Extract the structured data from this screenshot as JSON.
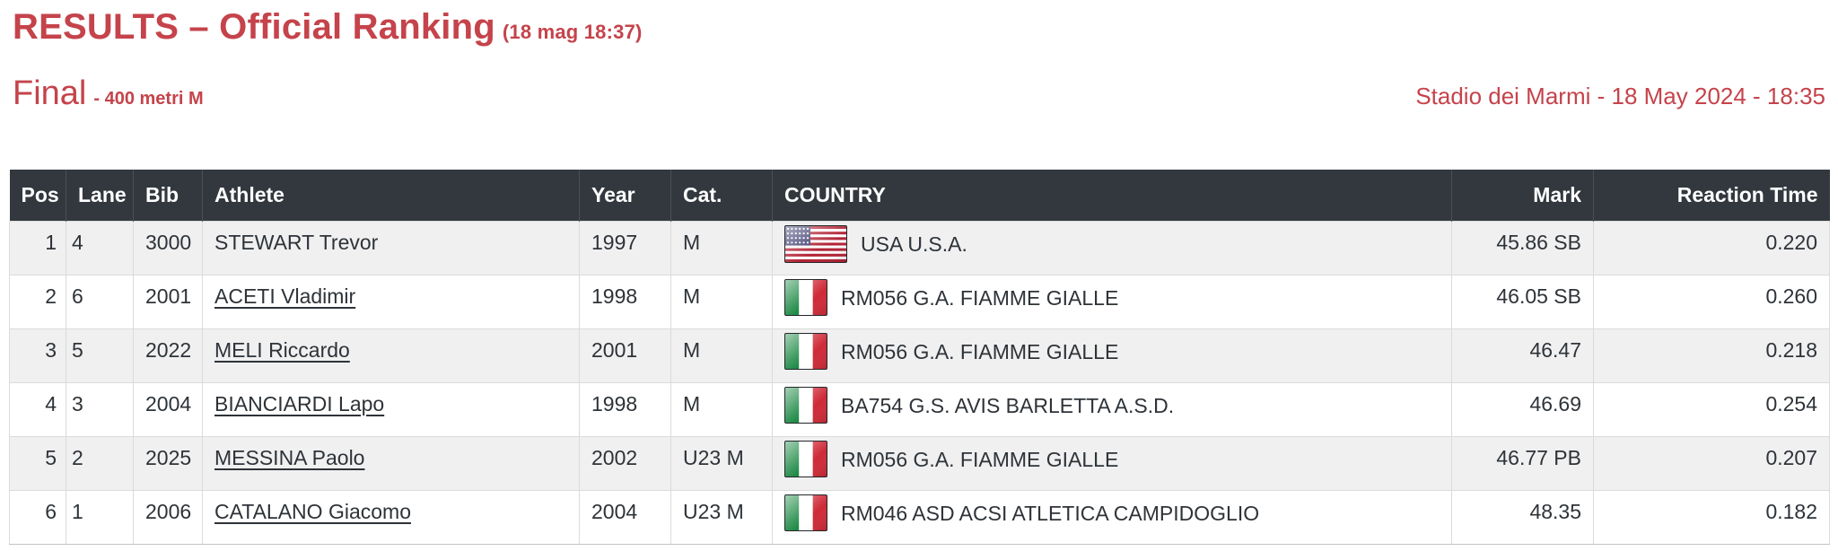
{
  "colors": {
    "accent": "#C5434B",
    "header_bg": "#32383E",
    "row_alt_bg": "#F0F0F1",
    "body_text": "#2E3338"
  },
  "header": {
    "title": "RESULTS – Official Ranking",
    "timestamp": "(18 mag 18:37)",
    "round": "Final",
    "event_detail": "- 400 metri M",
    "venue_line": "Stadio dei Marmi - 18 May 2024 - 18:35"
  },
  "table": {
    "columns": [
      {
        "key": "pos",
        "label": "Pos",
        "align": "right"
      },
      {
        "key": "lane",
        "label": "Lane",
        "align": "left"
      },
      {
        "key": "bib",
        "label": "Bib",
        "align": "left"
      },
      {
        "key": "athlete",
        "label": "Athlete",
        "align": "left"
      },
      {
        "key": "year",
        "label": "Year",
        "align": "left"
      },
      {
        "key": "cat",
        "label": "Cat.",
        "align": "left"
      },
      {
        "key": "country",
        "label": "COUNTRY",
        "align": "left"
      },
      {
        "key": "mark",
        "label": "Mark",
        "align": "right"
      },
      {
        "key": "reaction",
        "label": "Reaction Time",
        "align": "right"
      }
    ],
    "rows": [
      {
        "pos": "1",
        "lane": "4",
        "bib": "3000",
        "athlete": "STEWART Trevor",
        "athlete_is_link": false,
        "year": "1997",
        "cat": "M",
        "flag": "usa",
        "country": "USA U.S.A.",
        "mark": "45.86 SB",
        "reaction": "0.220"
      },
      {
        "pos": "2",
        "lane": "6",
        "bib": "2001",
        "athlete": "ACETI Vladimir",
        "athlete_is_link": true,
        "year": "1998",
        "cat": "M",
        "flag": "ita",
        "country": "RM056 G.A. FIAMME GIALLE",
        "mark": "46.05 SB",
        "reaction": "0.260"
      },
      {
        "pos": "3",
        "lane": "5",
        "bib": "2022",
        "athlete": "MELI Riccardo",
        "athlete_is_link": true,
        "year": "2001",
        "cat": "M",
        "flag": "ita",
        "country": "RM056 G.A. FIAMME GIALLE",
        "mark": "46.47",
        "reaction": "0.218"
      },
      {
        "pos": "4",
        "lane": "3",
        "bib": "2004",
        "athlete": "BIANCIARDI Lapo",
        "athlete_is_link": true,
        "year": "1998",
        "cat": "M",
        "flag": "ita",
        "country": "BA754 G.S. AVIS BARLETTA A.S.D.",
        "mark": "46.69",
        "reaction": "0.254"
      },
      {
        "pos": "5",
        "lane": "2",
        "bib": "2025",
        "athlete": "MESSINA Paolo",
        "athlete_is_link": true,
        "year": "2002",
        "cat": "U23 M",
        "flag": "ita",
        "country": "RM056 G.A. FIAMME GIALLE",
        "mark": "46.77 PB",
        "reaction": "0.207"
      },
      {
        "pos": "6",
        "lane": "1",
        "bib": "2006",
        "athlete": "CATALANO Giacomo",
        "athlete_is_link": true,
        "year": "2004",
        "cat": "U23 M",
        "flag": "ita",
        "country": "RM046 ASD ACSI ATLETICA CAMPIDOGLIO",
        "mark": "48.35",
        "reaction": "0.182"
      }
    ]
  }
}
